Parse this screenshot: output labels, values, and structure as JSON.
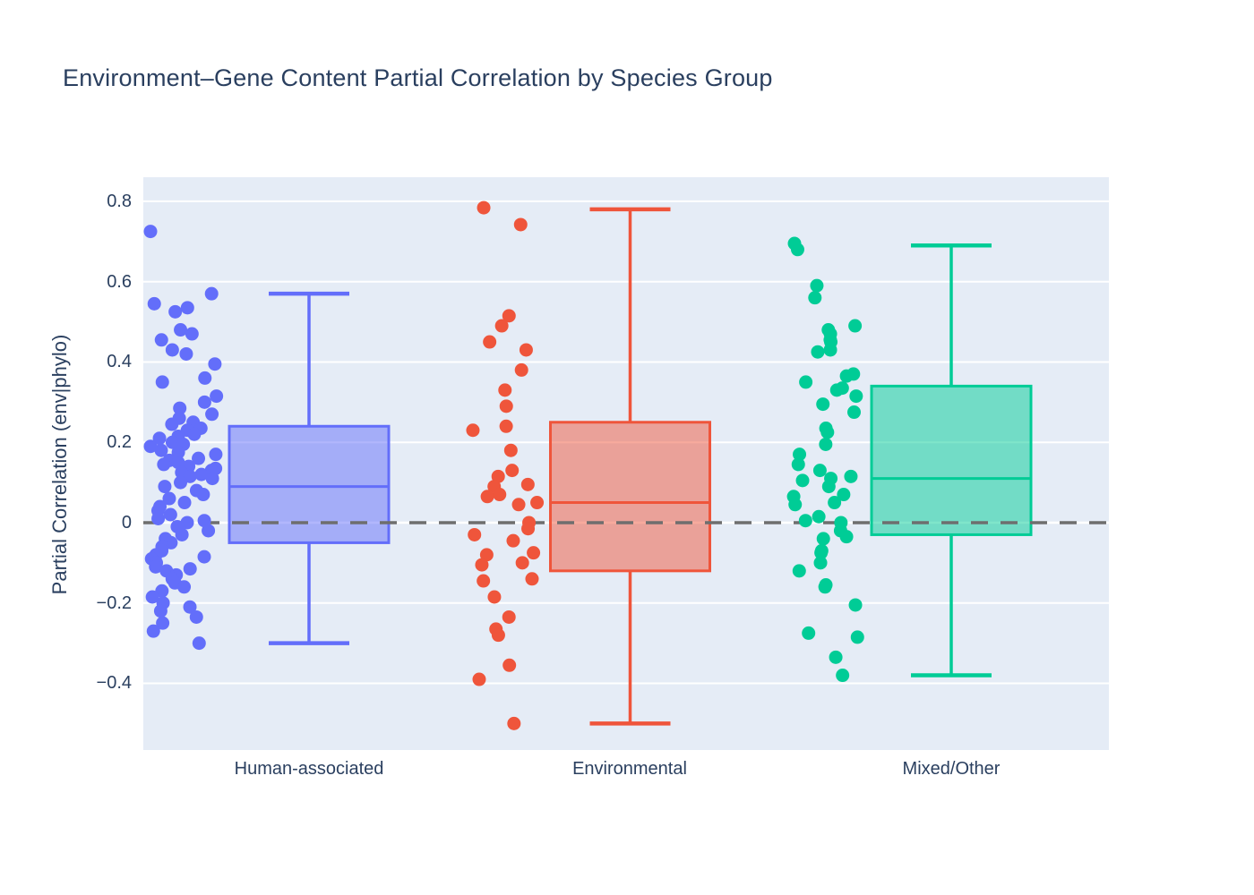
{
  "title": "Environment–Gene Content Partial Correlation by Species Group",
  "chart_data": {
    "type": "box",
    "title": "Environment–Gene Content Partial Correlation by Species Group",
    "xlabel": "",
    "ylabel": "Partial Correlation (env|phylo)",
    "ylim": [
      -0.566,
      0.86
    ],
    "ytick_values": [
      0.8,
      0.6,
      0.4,
      0.2,
      0,
      -0.2,
      -0.4
    ],
    "ytick_labels": [
      "0.8",
      "0.6",
      "0.4",
      "0.2",
      "0",
      "−0.2",
      "−0.4"
    ],
    "grid": true,
    "legend_position": "none",
    "plot_background": "#E5ECF6",
    "grid_color": "#FFFFFF",
    "zero_reference_line": {
      "y": 0,
      "style": "dashed",
      "color": "#6E6E6E"
    },
    "text_color": "#2A3F5F",
    "groups": [
      {
        "label": "Human-associated",
        "color": "#636EFA",
        "box": {
          "lower_whisker": -0.3,
          "q1": -0.05,
          "median": 0.09,
          "q3": 0.24,
          "upper_whisker": 0.57
        },
        "points": [
          0.725,
          0.57,
          0.545,
          0.535,
          0.525,
          0.48,
          0.47,
          0.455,
          0.43,
          0.42,
          0.395,
          0.36,
          0.35,
          0.315,
          0.3,
          0.285,
          0.27,
          0.26,
          0.25,
          0.245,
          0.235,
          0.23,
          0.22,
          0.215,
          0.21,
          0.2,
          0.195,
          0.19,
          0.18,
          0.175,
          0.17,
          0.16,
          0.155,
          0.15,
          0.145,
          0.14,
          0.135,
          0.13,
          0.125,
          0.12,
          0.115,
          0.11,
          0.1,
          0.09,
          0.08,
          0.07,
          0.06,
          0.05,
          0.04,
          0.03,
          0.02,
          0.01,
          0.005,
          0.0,
          -0.01,
          -0.02,
          -0.03,
          -0.04,
          -0.05,
          -0.06,
          -0.07,
          -0.08,
          -0.085,
          -0.09,
          -0.1,
          -0.11,
          -0.115,
          -0.12,
          -0.13,
          -0.14,
          -0.15,
          -0.16,
          -0.17,
          -0.185,
          -0.2,
          -0.21,
          -0.22,
          -0.235,
          -0.25,
          -0.27,
          -0.3
        ]
      },
      {
        "label": "Environmental",
        "color": "#EF553B",
        "box": {
          "lower_whisker": -0.5,
          "q1": -0.12,
          "median": 0.05,
          "q3": 0.25,
          "upper_whisker": 0.78
        },
        "points": [
          0.784,
          0.742,
          0.515,
          0.49,
          0.45,
          0.43,
          0.38,
          0.33,
          0.29,
          0.24,
          0.23,
          0.18,
          0.13,
          0.115,
          0.095,
          0.09,
          0.07,
          0.065,
          0.05,
          0.045,
          0.0,
          -0.015,
          -0.03,
          -0.045,
          -0.075,
          -0.08,
          -0.1,
          -0.105,
          -0.14,
          -0.145,
          -0.185,
          -0.235,
          -0.265,
          -0.28,
          -0.355,
          -0.39,
          -0.5
        ]
      },
      {
        "label": "Mixed/Other",
        "color": "#00CC96",
        "box": {
          "lower_whisker": -0.38,
          "q1": -0.03,
          "median": 0.11,
          "q3": 0.34,
          "upper_whisker": 0.69
        },
        "points": [
          0.695,
          0.68,
          0.59,
          0.56,
          0.49,
          0.48,
          0.47,
          0.455,
          0.45,
          0.43,
          0.425,
          0.37,
          0.365,
          0.35,
          0.335,
          0.33,
          0.315,
          0.295,
          0.275,
          0.235,
          0.225,
          0.195,
          0.17,
          0.145,
          0.13,
          0.115,
          0.11,
          0.105,
          0.09,
          0.07,
          0.065,
          0.05,
          0.045,
          0.015,
          0.005,
          0.0,
          -0.02,
          -0.035,
          -0.04,
          -0.07,
          -0.075,
          -0.1,
          -0.12,
          -0.155,
          -0.16,
          -0.205,
          -0.275,
          -0.285,
          -0.335,
          -0.38
        ]
      }
    ]
  }
}
